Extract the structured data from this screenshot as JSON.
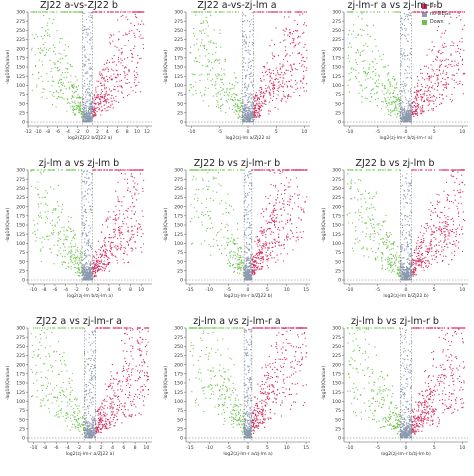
{
  "legend": {
    "items": [
      {
        "label": "Up",
        "color": "#d6285a"
      },
      {
        "label": "no-DEGs",
        "color": "#8c9bb0"
      },
      {
        "label": "Down",
        "color": "#6cc24a"
      }
    ]
  },
  "chart_data": [
    {
      "type": "scatter",
      "title": "ZJ22 a-vs-ZJ22 b",
      "xlabel": "log2(ZJ22 b/ZJ22 a)",
      "ylabel": "-log10(Qvalue)",
      "xlim": [
        -12,
        13
      ],
      "xticks": [
        -12,
        -10,
        -8,
        -6,
        -4,
        -2,
        0,
        2,
        4,
        6,
        8,
        10,
        12
      ],
      "ylim": [
        0,
        300
      ],
      "yticks": [
        0,
        25,
        50,
        75,
        100,
        125,
        150,
        175,
        200,
        225,
        250,
        275,
        300
      ],
      "thresholds": {
        "log2fc": [
          -1,
          1
        ],
        "qvalue_line": 0
      }
    },
    {
      "type": "scatter",
      "title": "ZJ22 a-vs-zj-lm a",
      "xlabel": "log2(zj-lm a/ZJ22 a)",
      "ylabel": "-log10(Qvalue)",
      "xlim": [
        -11,
        11
      ],
      "xticks": [
        -10,
        -5,
        0,
        5,
        10
      ],
      "ylim": [
        0,
        300
      ],
      "yticks": [
        0,
        25,
        50,
        75,
        100,
        125,
        150,
        175,
        200,
        225,
        250,
        275,
        300
      ],
      "thresholds": {
        "log2fc": [
          -1,
          1
        ],
        "qvalue_line": 0
      }
    },
    {
      "type": "scatter",
      "title": "zj-lm-r a vs zj-lm-r b",
      "xlabel": "log2(zj-lm-r b/zj-lm-r a)",
      "ylabel": "-log10(Qvalue)",
      "xlim": [
        -11,
        11
      ],
      "xticks": [
        -10,
        -5,
        0,
        5,
        10
      ],
      "ylim": [
        0,
        300
      ],
      "yticks": [
        0,
        25,
        50,
        75,
        100,
        125,
        150,
        175,
        200,
        225,
        250,
        275,
        300
      ],
      "thresholds": {
        "log2fc": [
          -1,
          1
        ],
        "qvalue_line": 0
      }
    },
    {
      "type": "scatter",
      "title": "zj-lm a vs zj-lm b",
      "xlabel": "log2(zj-lm b/zj-lm a)",
      "ylabel": "-log10(Qvalue)",
      "xlim": [
        -11,
        12
      ],
      "xticks": [
        -10,
        -8,
        -6,
        -4,
        -2,
        0,
        2,
        4,
        6,
        8,
        10
      ],
      "ylim": [
        0,
        300
      ],
      "yticks": [
        0,
        25,
        50,
        75,
        100,
        125,
        150,
        175,
        200,
        225,
        250,
        275,
        300
      ],
      "thresholds": {
        "log2fc": [
          -1,
          1
        ],
        "qvalue_line": 0
      }
    },
    {
      "type": "scatter",
      "title": "ZJ22 b vs zj-lm-r b",
      "xlabel": "log2(zj-lm-r b/ZJ22 b)",
      "ylabel": "-log10(Qvalue)",
      "xlim": [
        -16,
        16
      ],
      "xticks": [
        -15,
        -10,
        -5,
        0,
        5,
        10,
        15
      ],
      "ylim": [
        0,
        300
      ],
      "yticks": [
        0,
        25,
        50,
        75,
        100,
        125,
        150,
        175,
        200,
        225,
        250,
        275,
        300
      ],
      "thresholds": {
        "log2fc": [
          -1,
          1
        ],
        "qvalue_line": 0
      }
    },
    {
      "type": "scatter",
      "title": "ZJ22 b vs zj-lm b",
      "xlabel": "log2(zj-lm b/ZJ22 b)",
      "ylabel": "-log10(Qvalue)",
      "xlim": [
        -11,
        11
      ],
      "xticks": [
        -10,
        -5,
        0,
        5,
        10
      ],
      "ylim": [
        0,
        300
      ],
      "yticks": [
        0,
        25,
        50,
        75,
        100,
        125,
        150,
        175,
        200,
        225,
        250,
        275,
        300
      ],
      "thresholds": {
        "log2fc": [
          -1,
          1
        ],
        "qvalue_line": 0
      }
    },
    {
      "type": "scatter",
      "title": "ZJ22 a vs zj-lm-r a",
      "xlabel": "log2(zj-lm-r a/ZJ22 a)",
      "ylabel": "-log10(Qvalue)",
      "xlim": [
        -11,
        11
      ],
      "xticks": [
        -10,
        -8,
        -6,
        -4,
        -2,
        0,
        2,
        4,
        6,
        8,
        10
      ],
      "ylim": [
        0,
        300
      ],
      "yticks": [
        0,
        25,
        50,
        75,
        100,
        125,
        150,
        175,
        200,
        225,
        250,
        275,
        300
      ],
      "thresholds": {
        "log2fc": [
          -1,
          1
        ],
        "qvalue_line": 0
      }
    },
    {
      "type": "scatter",
      "title": "zj-lm a vs zj-lm-r a",
      "xlabel": "log2(zj-lm-r a/zj-lm a)",
      "ylabel": "-log10(Qvalue)",
      "xlim": [
        -16,
        16
      ],
      "xticks": [
        -15,
        -10,
        -5,
        0,
        5,
        10,
        15
      ],
      "ylim": [
        0,
        300
      ],
      "yticks": [
        0,
        25,
        50,
        75,
        100,
        125,
        150,
        175,
        200,
        225,
        250,
        275,
        300
      ],
      "thresholds": {
        "log2fc": [
          -1,
          1
        ],
        "qvalue_line": 0
      }
    },
    {
      "type": "scatter",
      "title": "zj-lm b vs zj-lm-r b",
      "xlabel": "log2(zj-lm-r b/zj-lm b)",
      "ylabel": "-log10(Qvalue)",
      "xlim": [
        -11,
        11
      ],
      "xticks": [
        -10,
        -5,
        0,
        5,
        10
      ],
      "ylim": [
        0,
        300
      ],
      "yticks": [
        0,
        25,
        50,
        75,
        100,
        125,
        150,
        175,
        200,
        225,
        250,
        275,
        300
      ],
      "thresholds": {
        "log2fc": [
          -1,
          1
        ],
        "qvalue_line": 0
      }
    }
  ]
}
